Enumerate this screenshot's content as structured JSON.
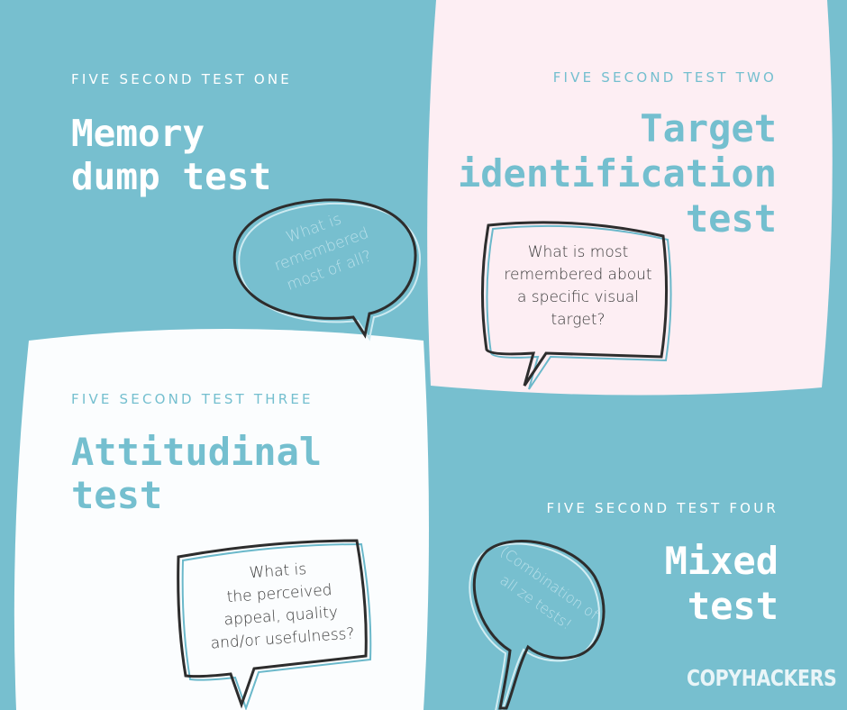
{
  "colors": {
    "background": "#77bfcf",
    "pink_panel": "#fdeef3",
    "white_panel": "#fbfdfe",
    "teal_text": "#74bfcf",
    "white_text": "#ffffff",
    "bubble_stroke": "#2d2d2d"
  },
  "tests": [
    {
      "label": "FIVE SECOND TEST ONE",
      "title_lines": [
        "Memory",
        "dump test"
      ],
      "bubble_lines": [
        "What is",
        "remembered",
        "most of all?"
      ]
    },
    {
      "label": "FIVE SECOND TEST TWO",
      "title_lines": [
        "Target",
        "identification",
        "test"
      ],
      "bubble_lines": [
        "What is most",
        "remembered about",
        "a specific visual",
        "target?"
      ]
    },
    {
      "label": "FIVE SECOND TEST THREE",
      "title_lines": [
        "Attitudinal",
        "test"
      ],
      "bubble_lines": [
        "What is",
        "the perceived",
        "appeal, quality",
        "and/or usefulness?"
      ]
    },
    {
      "label": "FIVE SECOND TEST FOUR",
      "title_lines": [
        "Mixed",
        "test"
      ],
      "bubble_lines": [
        "(Combination of",
        "all ze tests!"
      ]
    }
  ],
  "brand": "COPYHACKERS"
}
